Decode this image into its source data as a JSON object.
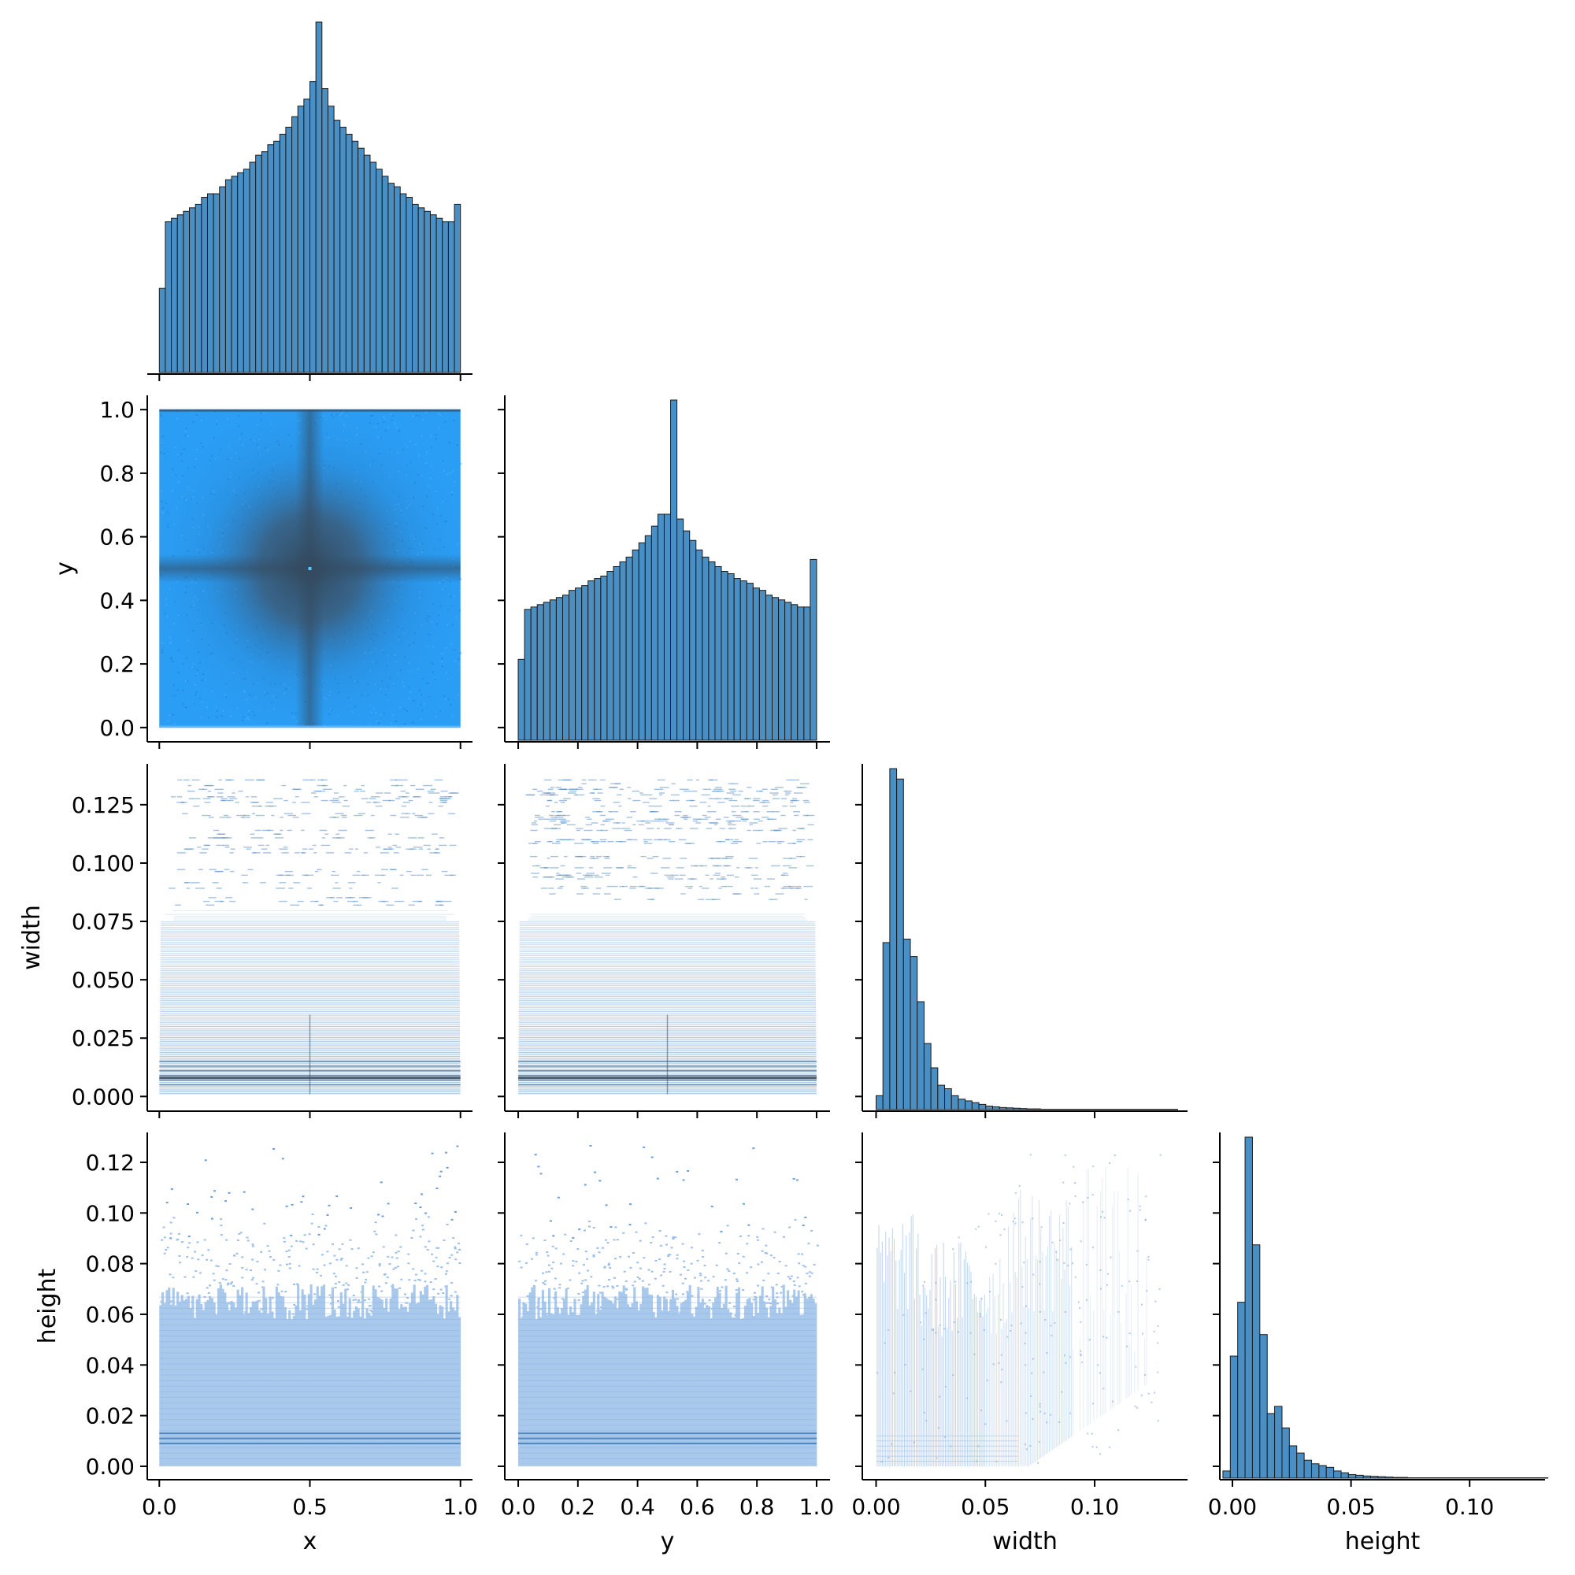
{
  "chart_data": {
    "type": "pairplot",
    "variables": [
      "x",
      "y",
      "width",
      "height"
    ],
    "colors": {
      "bar": "#4a8fc4",
      "bar_edge": "#1a1a1a",
      "dense": "#3a5369",
      "mid": "#2a9df4",
      "sparse": "#a8c8ec",
      "light": "#9dbfe8"
    },
    "histograms": [
      {
        "variable": "x",
        "bin_range": [
          0.0,
          1.0
        ],
        "counts": [
          0.24,
          0.43,
          0.44,
          0.45,
          0.46,
          0.47,
          0.48,
          0.5,
          0.51,
          0.51,
          0.53,
          0.55,
          0.56,
          0.57,
          0.58,
          0.6,
          0.62,
          0.63,
          0.65,
          0.66,
          0.68,
          0.7,
          0.73,
          0.76,
          0.78,
          0.83,
          1.0,
          0.81,
          0.76,
          0.72,
          0.7,
          0.68,
          0.66,
          0.64,
          0.62,
          0.6,
          0.58,
          0.56,
          0.54,
          0.53,
          0.51,
          0.5,
          0.48,
          0.47,
          0.46,
          0.45,
          0.44,
          0.43,
          0.43,
          0.48
        ]
      },
      {
        "variable": "y",
        "bin_range": [
          0.0,
          1.0
        ],
        "counts": [
          0.34,
          0.55,
          0.56,
          0.57,
          0.58,
          0.59,
          0.6,
          0.61,
          0.63,
          0.64,
          0.65,
          0.67,
          0.68,
          0.69,
          0.71,
          0.73,
          0.75,
          0.77,
          0.8,
          0.83,
          0.86,
          0.9,
          0.95,
          0.95,
          1.43,
          0.93,
          0.88,
          0.84,
          0.8,
          0.77,
          0.75,
          0.73,
          0.71,
          0.7,
          0.68,
          0.67,
          0.66,
          0.64,
          0.63,
          0.61,
          0.6,
          0.59,
          0.58,
          0.57,
          0.56,
          0.56,
          0.76
        ]
      },
      {
        "variable": "width",
        "bin_range": [
          0.0,
          0.138
        ],
        "counts": [
          0.04,
          0.48,
          0.98,
          0.95,
          0.49,
          0.44,
          0.31,
          0.19,
          0.12,
          0.07,
          0.06,
          0.04,
          0.03,
          0.025,
          0.02,
          0.015,
          0.01,
          0.008,
          0.006,
          0.005,
          0.004,
          0.003,
          0.002,
          0.002,
          0.001,
          0.001,
          0.001,
          0.001,
          0.001,
          0.001,
          0.001,
          0.001,
          0.001,
          0.001,
          0.001,
          0.001,
          0.001,
          0.001,
          0.001,
          0.001,
          0.001,
          0.001,
          0.001,
          0.001
        ]
      },
      {
        "variable": "height",
        "bin_range": [
          -0.004,
          0.133
        ],
        "counts": [
          0.02,
          0.34,
          0.49,
          0.95,
          0.65,
          0.4,
          0.18,
          0.2,
          0.14,
          0.09,
          0.07,
          0.05,
          0.04,
          0.035,
          0.03,
          0.02,
          0.015,
          0.01,
          0.008,
          0.006,
          0.005,
          0.004,
          0.003,
          0.002,
          0.002,
          0.001,
          0.001,
          0.001,
          0.001,
          0.001,
          0.001,
          0.001,
          0.001,
          0.001,
          0.001,
          0.001,
          0.001,
          0.001,
          0.001,
          0.001,
          0.001,
          0.001,
          0.001,
          0.001
        ]
      }
    ],
    "axes": {
      "x": {
        "range": [
          -0.04,
          1.04
        ],
        "ticks": [
          0.0,
          0.5,
          1.0
        ],
        "tick_labels": [
          "0.0",
          "0.5",
          "1.0"
        ],
        "label": "x"
      },
      "y": {
        "range": [
          -0.045,
          1.045
        ],
        "ticks": [
          0.0,
          0.2,
          0.4,
          0.6,
          0.8,
          1.0
        ],
        "tick_labels": [
          "0.0",
          "0.2",
          "0.4",
          "0.6",
          "0.8",
          "1.0"
        ],
        "label": "y"
      },
      "width": {
        "range": [
          -0.0063,
          0.1425
        ],
        "ticks": [
          0.0,
          0.025,
          0.05,
          0.075,
          0.1,
          0.125
        ],
        "tick_labels": [
          "0.000",
          "0.025",
          "0.050",
          "0.075",
          "0.100",
          "0.125"
        ],
        "tick_labels_x": [
          "0.00",
          "0.05",
          "0.10"
        ],
        "ticks_x": [
          0.0,
          0.05,
          0.1
        ],
        "label": "width"
      },
      "height": {
        "range": [
          -0.0053,
          0.1318
        ],
        "ticks": [
          0.0,
          0.02,
          0.04,
          0.06,
          0.08,
          0.1,
          0.12
        ],
        "tick_labels": [
          "0.00",
          "0.02",
          "0.04",
          "0.06",
          "0.08",
          "0.10",
          "0.12"
        ],
        "tick_labels_x": [
          "0.00",
          "0.05",
          "0.10"
        ],
        "ticks_x": [
          0.0,
          0.05,
          0.1
        ],
        "label": "height"
      }
    },
    "scatter_cells": [
      {
        "row": "y",
        "col": "x",
        "style": "dense-square"
      },
      {
        "row": "width",
        "col": "x",
        "style": "horizontal-bands"
      },
      {
        "row": "width",
        "col": "y",
        "style": "horizontal-bands"
      },
      {
        "row": "height",
        "col": "x",
        "style": "light-fill"
      },
      {
        "row": "height",
        "col": "y",
        "style": "light-fill"
      },
      {
        "row": "height",
        "col": "width",
        "style": "sparse-vertical"
      }
    ]
  }
}
